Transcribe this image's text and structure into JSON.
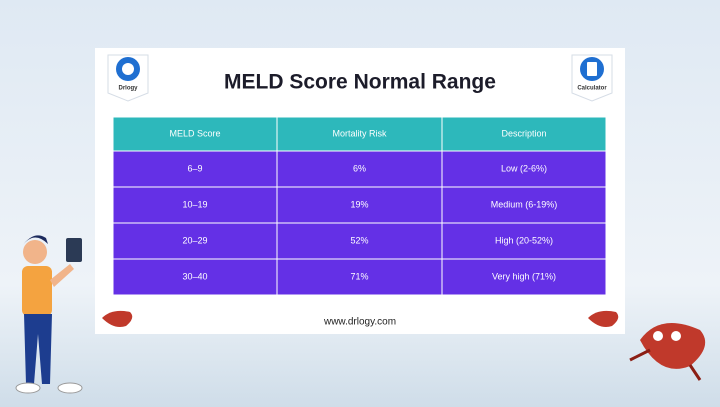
{
  "header": {
    "title": "MELD Score Normal Range",
    "left_logo": "Drlogy",
    "right_logo": "Calculator"
  },
  "table": {
    "columns": [
      "MELD Score",
      "Mortality Risk",
      "Description"
    ],
    "rows": [
      [
        "6–9",
        "6%",
        "Low (2-6%)"
      ],
      [
        "10–19",
        "19%",
        "Medium (6-19%)"
      ],
      [
        "20–29",
        "52%",
        "High (20-52%)"
      ],
      [
        "30–40",
        "71%",
        "Very high (71%)"
      ]
    ]
  },
  "footer": {
    "url": "www.drlogy.com"
  }
}
